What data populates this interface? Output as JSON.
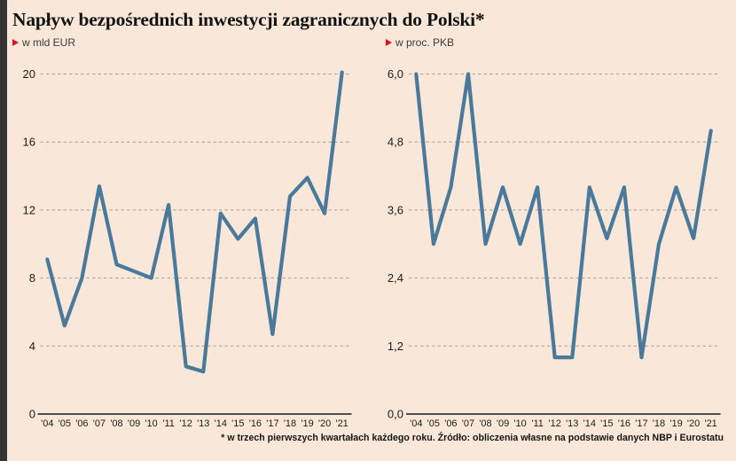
{
  "page": {
    "title": "Napływ bezpośrednich inwestycji zagranicznych do Polski*",
    "footnote": "* w trzech pierwszych kwartałach każdego roku. Źródło: obliczenia własne na podstawie danych NBP i Eurostatu"
  },
  "colors": {
    "background": "#f9e8d9",
    "left_bar": "#343434",
    "line": "#4a7a9b",
    "grid": "#a59e94",
    "axis": "#4d4d4d",
    "red_marker": "#e3101f",
    "tick_text": "#1c1c1c"
  },
  "chart_data": [
    {
      "type": "line",
      "label": "w mld EUR",
      "categories": [
        "'04",
        "'05",
        "'06",
        "'07",
        "'08",
        "'09",
        "'10",
        "'11",
        "'12",
        "'13",
        "'14",
        "'15",
        "'16",
        "'17",
        "'18",
        "'19",
        "'20",
        "'21"
      ],
      "values": [
        9.1,
        5.2,
        8.0,
        13.4,
        8.8,
        8.4,
        8.0,
        12.3,
        2.8,
        2.5,
        11.8,
        10.3,
        11.5,
        4.7,
        12.8,
        13.9,
        11.8,
        20.1
      ],
      "ylim": [
        0,
        20
      ],
      "ytick_values": [
        0,
        4,
        8,
        12,
        16,
        20
      ],
      "ytick_labels": [
        "0",
        "4",
        "8",
        "12",
        "16",
        "20"
      ],
      "grid": true,
      "legend": false
    },
    {
      "type": "line",
      "label": "w proc. PKB",
      "categories": [
        "'04",
        "'05",
        "'06",
        "'07",
        "'08",
        "'09",
        "'10",
        "'11",
        "'12",
        "'13",
        "'14",
        "'15",
        "'16",
        "'17",
        "'18",
        "'19",
        "'20",
        "'21"
      ],
      "values": [
        6.0,
        3.0,
        4.0,
        6.0,
        3.0,
        4.0,
        3.0,
        4.0,
        1.0,
        1.0,
        4.0,
        3.1,
        4.0,
        1.0,
        3.0,
        4.0,
        3.1,
        5.0
      ],
      "ylim": [
        0,
        6
      ],
      "ytick_values": [
        0,
        1.2,
        2.4,
        3.6,
        4.8,
        6.0
      ],
      "ytick_labels": [
        "0,0",
        "1,2",
        "2,4",
        "3,6",
        "4,8",
        "6,0"
      ],
      "grid": true,
      "legend": false
    }
  ]
}
